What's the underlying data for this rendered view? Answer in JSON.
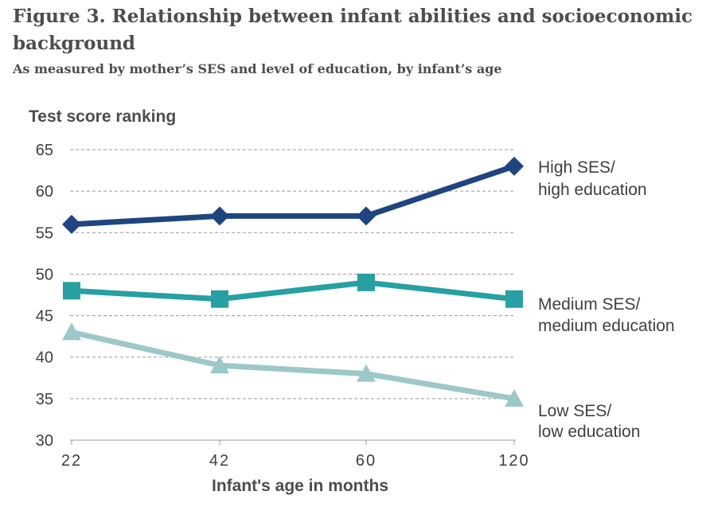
{
  "title": "Figure 3.  Relationship between infant abilities and socioeconomic background",
  "subtitle": "As measured by mother’s SES and level of education, by infant’s age",
  "chart_data": {
    "type": "line",
    "title": "Figure 3.  Relationship between infant abilities and socioeconomic background",
    "subtitle": "As measured by mother’s SES and level of education, by infant’s age",
    "xlabel": "Infant's age in months",
    "ylabel": "Test score ranking",
    "x": [
      "22",
      "42",
      "60",
      "120"
    ],
    "ylim": [
      30,
      65
    ],
    "yticks": [
      30,
      35,
      40,
      45,
      50,
      55,
      60,
      65
    ],
    "grid": true,
    "legend": "inline-right",
    "series": [
      {
        "name_lines": [
          "High SES/",
          "high education"
        ],
        "values": [
          56,
          57,
          57,
          63
        ],
        "color": "#1f4580",
        "marker": "diamond"
      },
      {
        "name_lines": [
          "Medium SES/",
          "medium education"
        ],
        "values": [
          48,
          47,
          49,
          47
        ],
        "color": "#26a0a3",
        "marker": "square"
      },
      {
        "name_lines": [
          "Low SES/",
          "low education"
        ],
        "values": [
          43,
          39,
          38,
          35
        ],
        "color": "#9cc8c9",
        "marker": "triangle"
      }
    ]
  }
}
